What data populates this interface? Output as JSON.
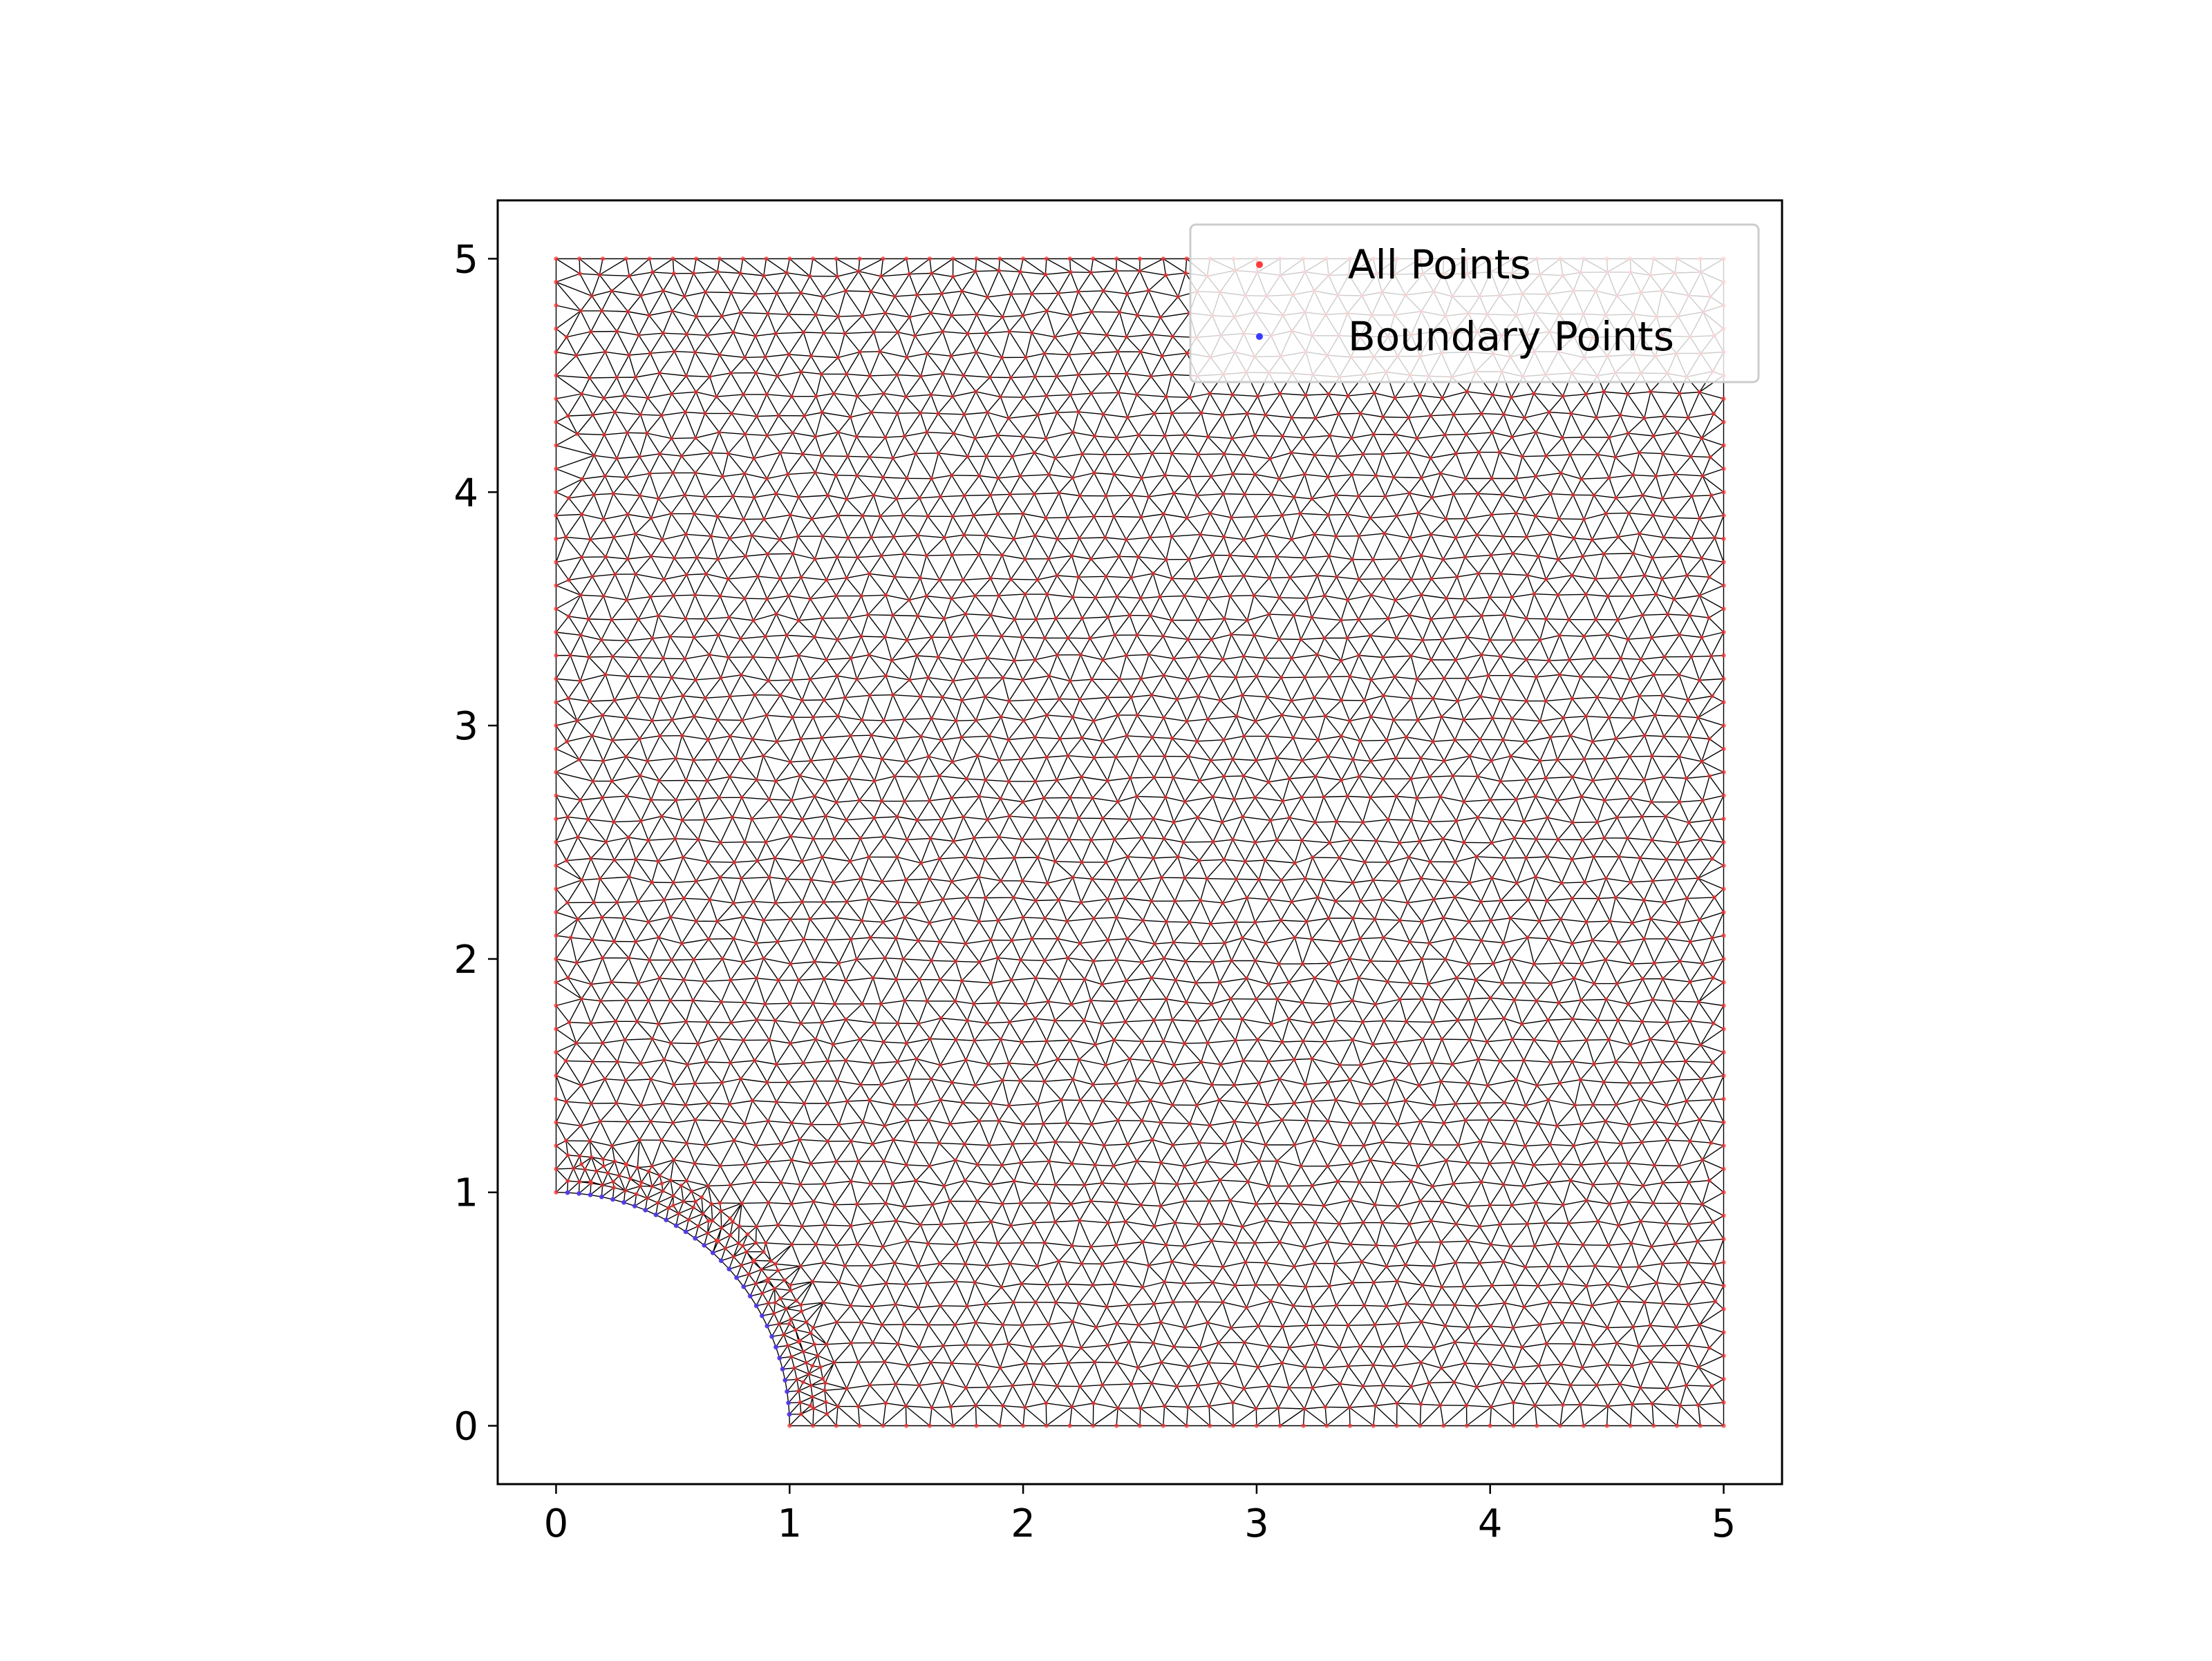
{
  "chart_data": {
    "type": "scatter",
    "title": "",
    "xlabel": "",
    "ylabel": "",
    "xlim": [
      -0.25,
      5.25
    ],
    "ylim": [
      -0.25,
      5.25
    ],
    "xticks": [
      0,
      1,
      2,
      3,
      4,
      5
    ],
    "yticks": [
      0,
      1,
      2,
      3,
      4,
      5
    ],
    "xtick_labels": [
      "0",
      "1",
      "2",
      "3",
      "4",
      "5"
    ],
    "ytick_labels": [
      "0",
      "1",
      "2",
      "3",
      "4",
      "5"
    ],
    "grid": false,
    "aspect": "equal",
    "legend_position": "top-right",
    "domain": {
      "description_shape": "square [0,5]x[0,5] minus quarter disk of radius 1 at origin",
      "square_min": 0,
      "square_max": 5,
      "hole_center": [
        0,
        0
      ],
      "hole_radius": 1
    },
    "mesh": {
      "type": "triangulation",
      "edge_color": "#000000",
      "approx_point_spacing": 0.1
    },
    "series": [
      {
        "name": "All Points",
        "color": "#ff3b3b",
        "marker": "dot",
        "covers": "entire domain (boundary and interior)"
      },
      {
        "name": "Boundary Points",
        "color": "#3b3bff",
        "marker": "dot",
        "covers": "quarter-circle arc of radius 1 from (1,0) to (0,1)"
      }
    ]
  }
}
